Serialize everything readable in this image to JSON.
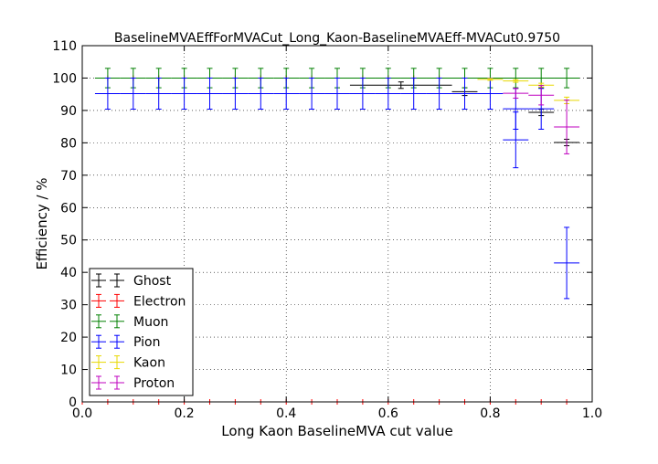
{
  "chart_data": {
    "type": "scatter",
    "title": "BaselineMVAEffForMVACut_Long_Kaon-BaselineMVAEff-MVACut0.9750",
    "xlabel": "Long Kaon BaselineMVA cut value",
    "ylabel": "Efficiency / %",
    "xlim": [
      0.0,
      1.0
    ],
    "ylim": [
      0,
      110
    ],
    "xticks": [
      0.0,
      0.2,
      0.4,
      0.6,
      0.8,
      1.0
    ],
    "xtick_labels": [
      "0.0",
      "0.2",
      "0.4",
      "0.6",
      "0.8",
      "1.0"
    ],
    "yticks": [
      0,
      10,
      20,
      30,
      40,
      50,
      60,
      70,
      80,
      90,
      100,
      110
    ],
    "ytick_labels": [
      "0",
      "10",
      "20",
      "30",
      "40",
      "50",
      "60",
      "70",
      "80",
      "90",
      "100",
      "110"
    ],
    "grid": true,
    "legend_position": "lower-left",
    "series": [
      {
        "name": "Ghost",
        "color": "#000000",
        "points": [
          {
            "x": 0.625,
            "y": 97.8,
            "xerr": 0.1,
            "yerr": 1.0
          },
          {
            "x": 0.75,
            "y": 95.8,
            "xerr": 0.025,
            "yerr": 1.2
          },
          {
            "x": 0.9,
            "y": 89.4,
            "xerr": 0.025,
            "yerr": 1.0
          },
          {
            "x": 0.95,
            "y": 80.1,
            "xerr": 0.025,
            "yerr": 1.0
          }
        ]
      },
      {
        "name": "Electron",
        "color": "#ff0000",
        "points": [
          {
            "x": 0.0,
            "y": 0.0,
            "xerr": 0.0
          },
          {
            "x": 0.05,
            "y": 0.0,
            "xerr": 0.0
          },
          {
            "x": 0.1,
            "y": 0.0,
            "xerr": 0.0
          },
          {
            "x": 0.15,
            "y": 0.0,
            "xerr": 0.0
          },
          {
            "x": 0.2,
            "y": 0.0,
            "xerr": 0.0
          },
          {
            "x": 0.25,
            "y": 0.0,
            "xerr": 0.0
          },
          {
            "x": 0.3,
            "y": 0.0,
            "xerr": 0.0
          },
          {
            "x": 0.35,
            "y": 0.0,
            "xerr": 0.0
          },
          {
            "x": 0.4,
            "y": 0.0,
            "xerr": 0.0
          },
          {
            "x": 0.45,
            "y": 0.0,
            "xerr": 0.0
          },
          {
            "x": 0.5,
            "y": 0.0,
            "xerr": 0.0
          },
          {
            "x": 0.55,
            "y": 0.0,
            "xerr": 0.0
          },
          {
            "x": 0.6,
            "y": 0.0,
            "xerr": 0.0
          },
          {
            "x": 0.65,
            "y": 0.0,
            "xerr": 0.0
          },
          {
            "x": 0.7,
            "y": 0.0,
            "xerr": 0.0
          },
          {
            "x": 0.75,
            "y": 0.0,
            "xerr": 0.0
          },
          {
            "x": 0.8,
            "y": 0.0,
            "xerr": 0.0
          },
          {
            "x": 0.85,
            "y": 0.0,
            "xerr": 0.0
          },
          {
            "x": 0.9,
            "y": 0.0,
            "xerr": 0.0
          },
          {
            "x": 0.95,
            "y": 0.0,
            "xerr": 0.0
          },
          {
            "x": 0.0,
            "y": 100.0,
            "xerr": 0.0
          },
          {
            "x": 0.05,
            "y": 100.0,
            "xerr": 0.0
          },
          {
            "x": 0.1,
            "y": 100.0,
            "xerr": 0.0
          },
          {
            "x": 0.15,
            "y": 100.0,
            "xerr": 0.0
          },
          {
            "x": 0.2,
            "y": 100.0,
            "xerr": 0.0
          },
          {
            "x": 0.25,
            "y": 100.0,
            "xerr": 0.0
          },
          {
            "x": 0.3,
            "y": 100.0,
            "xerr": 0.0
          },
          {
            "x": 0.35,
            "y": 100.0,
            "xerr": 0.0
          },
          {
            "x": 0.4,
            "y": 100.0,
            "xerr": 0.0
          },
          {
            "x": 0.45,
            "y": 100.0,
            "xerr": 0.0
          },
          {
            "x": 0.5,
            "y": 100.0,
            "xerr": 0.0
          },
          {
            "x": 0.55,
            "y": 100.0,
            "xerr": 0.0
          },
          {
            "x": 0.6,
            "y": 100.0,
            "xerr": 0.0
          },
          {
            "x": 0.65,
            "y": 100.0,
            "xerr": 0.0
          },
          {
            "x": 0.7,
            "y": 100.0,
            "xerr": 0.0
          },
          {
            "x": 0.75,
            "y": 100.0,
            "xerr": 0.0
          }
        ]
      },
      {
        "name": "Muon",
        "color": "#008000",
        "points": [
          {
            "x": 0.05,
            "y": 100.0,
            "xerr": 0.025,
            "yerr": 3.0
          },
          {
            "x": 0.1,
            "y": 100.0,
            "xerr": 0.025,
            "yerr": 3.0
          },
          {
            "x": 0.15,
            "y": 100.0,
            "xerr": 0.025,
            "yerr": 3.0
          },
          {
            "x": 0.2,
            "y": 100.0,
            "xerr": 0.025,
            "yerr": 3.0
          },
          {
            "x": 0.25,
            "y": 100.0,
            "xerr": 0.025,
            "yerr": 3.0
          },
          {
            "x": 0.3,
            "y": 100.0,
            "xerr": 0.025,
            "yerr": 3.0
          },
          {
            "x": 0.35,
            "y": 100.0,
            "xerr": 0.025,
            "yerr": 3.0
          },
          {
            "x": 0.4,
            "y": 100.0,
            "xerr": 0.025,
            "yerr": 3.0
          },
          {
            "x": 0.45,
            "y": 100.0,
            "xerr": 0.025,
            "yerr": 3.0
          },
          {
            "x": 0.5,
            "y": 100.0,
            "xerr": 0.025,
            "yerr": 3.0
          },
          {
            "x": 0.55,
            "y": 100.0,
            "xerr": 0.025,
            "yerr": 3.0
          },
          {
            "x": 0.6,
            "y": 100.0,
            "xerr": 0.025,
            "yerr": 3.0
          },
          {
            "x": 0.65,
            "y": 100.0,
            "xerr": 0.025,
            "yerr": 3.0
          },
          {
            "x": 0.7,
            "y": 100.0,
            "xerr": 0.025,
            "yerr": 3.0
          },
          {
            "x": 0.75,
            "y": 100.0,
            "xerr": 0.025,
            "yerr": 3.0
          },
          {
            "x": 0.8,
            "y": 100.0,
            "xerr": 0.025,
            "yerr": 3.0
          },
          {
            "x": 0.85,
            "y": 100.0,
            "xerr": 0.025,
            "yerr": 3.0
          },
          {
            "x": 0.9,
            "y": 100.0,
            "xerr": 0.025,
            "yerr": 3.0
          },
          {
            "x": 0.95,
            "y": 100.0,
            "xerr": 0.025,
            "yerr": 3.0
          }
        ]
      },
      {
        "name": "Pion",
        "color": "#0000ff",
        "points": [
          {
            "x": 0.05,
            "y": 95.2,
            "xerr": 0.025,
            "yerr": 4.8
          },
          {
            "x": 0.1,
            "y": 95.2,
            "xerr": 0.025,
            "yerr": 4.8
          },
          {
            "x": 0.15,
            "y": 95.2,
            "xerr": 0.025,
            "yerr": 4.8
          },
          {
            "x": 0.2,
            "y": 95.2,
            "xerr": 0.025,
            "yerr": 4.8
          },
          {
            "x": 0.25,
            "y": 95.2,
            "xerr": 0.025,
            "yerr": 4.8
          },
          {
            "x": 0.3,
            "y": 95.2,
            "xerr": 0.025,
            "yerr": 4.8
          },
          {
            "x": 0.35,
            "y": 95.2,
            "xerr": 0.025,
            "yerr": 4.8
          },
          {
            "x": 0.4,
            "y": 95.2,
            "xerr": 0.025,
            "yerr": 4.8
          },
          {
            "x": 0.45,
            "y": 95.2,
            "xerr": 0.025,
            "yerr": 4.8
          },
          {
            "x": 0.5,
            "y": 95.2,
            "xerr": 0.025,
            "yerr": 4.8
          },
          {
            "x": 0.55,
            "y": 95.2,
            "xerr": 0.025,
            "yerr": 4.8
          },
          {
            "x": 0.6,
            "y": 95.2,
            "xerr": 0.025,
            "yerr": 4.8
          },
          {
            "x": 0.65,
            "y": 95.2,
            "xerr": 0.025,
            "yerr": 4.8
          },
          {
            "x": 0.7,
            "y": 95.2,
            "xerr": 0.025,
            "yerr": 4.8
          },
          {
            "x": 0.75,
            "y": 95.2,
            "xerr": 0.025,
            "yerr": 4.8
          },
          {
            "x": 0.8,
            "y": 95.2,
            "xerr": 0.025,
            "yerr": 4.8
          },
          {
            "x": 0.85,
            "y": 90.5,
            "xerr": 0.025,
            "yerr": 6.3
          },
          {
            "x": 0.9,
            "y": 90.5,
            "xerr": 0.025,
            "yerr": 6.3
          },
          {
            "x": 0.85,
            "y": 80.9,
            "xerr": 0.025,
            "yerr": 8.6
          },
          {
            "x": 0.95,
            "y": 42.9,
            "xerr": 0.025,
            "yerr": 11.0
          }
        ]
      },
      {
        "name": "Kaon",
        "color": "#e8d800",
        "points": [
          {
            "x": 0.8,
            "y": 99.6,
            "xerr": 0.025,
            "yerr": 0.3
          },
          {
            "x": 0.85,
            "y": 99.1,
            "xerr": 0.025,
            "yerr": 0.4
          },
          {
            "x": 0.9,
            "y": 97.8,
            "xerr": 0.025,
            "yerr": 0.6
          },
          {
            "x": 0.95,
            "y": 93.1,
            "xerr": 0.025,
            "yerr": 1.0
          }
        ]
      },
      {
        "name": "Proton",
        "color": "#bf00bf",
        "points": [
          {
            "x": 0.85,
            "y": 95.3,
            "xerr": 0.025,
            "yerr": 1.5
          },
          {
            "x": 0.9,
            "y": 94.7,
            "xerr": 0.025,
            "yerr": 3.0
          },
          {
            "x": 0.95,
            "y": 84.9,
            "xerr": 0.025,
            "yerr": 8.3
          }
        ]
      }
    ]
  }
}
